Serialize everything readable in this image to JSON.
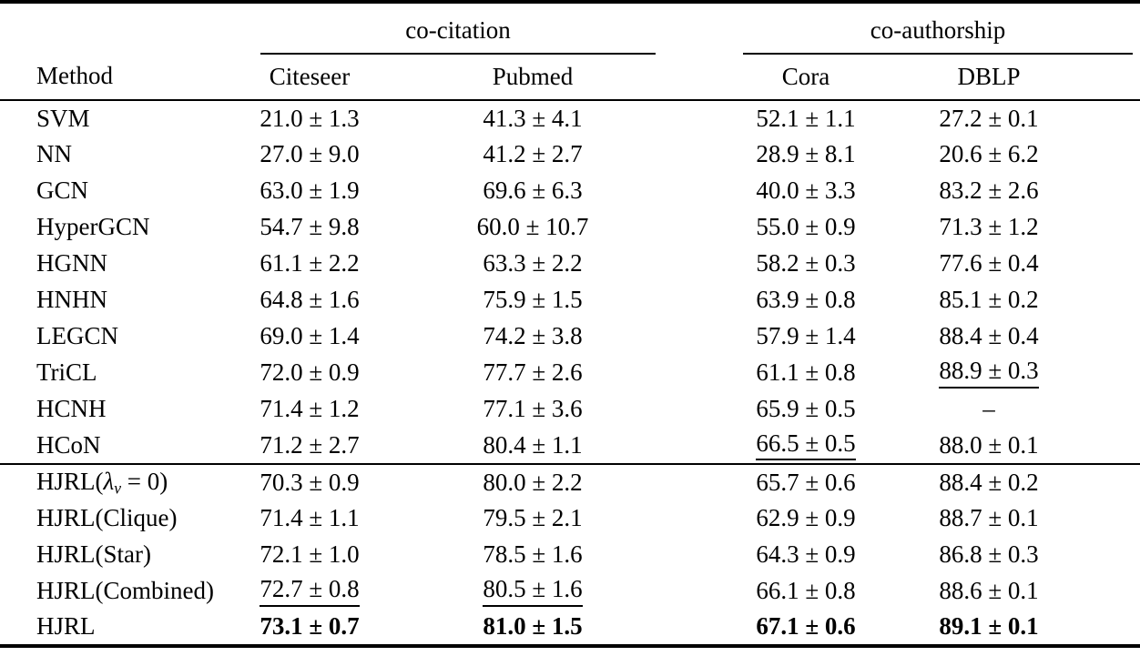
{
  "page": {
    "background_color": "#ffffff",
    "text_color": "#000000",
    "rule_color": "#000000"
  },
  "table": {
    "method_header": "Method",
    "groups": [
      {
        "label": "co-citation",
        "columns": [
          "Citeseer",
          "Pubmed"
        ]
      },
      {
        "label": "co-authorship",
        "columns": [
          "Cora",
          "DBLP"
        ]
      }
    ],
    "sections": [
      {
        "name": "baselines",
        "rows": [
          {
            "method": "SVM",
            "cells": [
              {
                "text": "21.0 ± 1.3"
              },
              {
                "text": "41.3 ± 4.1"
              },
              {
                "text": "52.1 ± 1.1"
              },
              {
                "text": "27.2 ± 0.1"
              }
            ]
          },
          {
            "method": "NN",
            "cells": [
              {
                "text": "27.0 ± 9.0"
              },
              {
                "text": "41.2 ± 2.7"
              },
              {
                "text": "28.9 ± 8.1"
              },
              {
                "text": "20.6 ± 6.2"
              }
            ]
          },
          {
            "method": "GCN",
            "cells": [
              {
                "text": "63.0 ± 1.9"
              },
              {
                "text": "69.6 ± 6.3"
              },
              {
                "text": "40.0 ± 3.3"
              },
              {
                "text": "83.2 ± 2.6"
              }
            ]
          },
          {
            "method": "HyperGCN",
            "cells": [
              {
                "text": "54.7 ± 9.8"
              },
              {
                "text": "60.0 ± 10.7"
              },
              {
                "text": "55.0 ± 0.9"
              },
              {
                "text": "71.3 ± 1.2"
              }
            ]
          },
          {
            "method": "HGNN",
            "cells": [
              {
                "text": "61.1 ± 2.2"
              },
              {
                "text": "63.3 ± 2.2"
              },
              {
                "text": "58.2 ± 0.3"
              },
              {
                "text": "77.6 ± 0.4"
              }
            ]
          },
          {
            "method": "HNHN",
            "cells": [
              {
                "text": "64.8 ± 1.6"
              },
              {
                "text": "75.9 ± 1.5"
              },
              {
                "text": "63.9 ± 0.8"
              },
              {
                "text": "85.1 ± 0.2"
              }
            ]
          },
          {
            "method": "LEGCN",
            "cells": [
              {
                "text": "69.0 ± 1.4"
              },
              {
                "text": "74.2 ± 3.8"
              },
              {
                "text": "57.9 ± 1.4"
              },
              {
                "text": "88.4 ± 0.4"
              }
            ]
          },
          {
            "method": "TriCL",
            "cells": [
              {
                "text": "72.0 ± 0.9"
              },
              {
                "text": "77.7 ± 2.6"
              },
              {
                "text": "61.1 ± 0.8"
              },
              {
                "text": "88.9 ± 0.3",
                "underline": true
              }
            ]
          },
          {
            "method": "HCNH",
            "cells": [
              {
                "text": "71.4 ± 1.2"
              },
              {
                "text": "77.1 ± 3.6"
              },
              {
                "text": "65.9 ± 0.5"
              },
              {
                "text": "–"
              }
            ]
          },
          {
            "method": "HCoN",
            "cells": [
              {
                "text": "71.2 ± 2.7"
              },
              {
                "text": "80.4 ± 1.1"
              },
              {
                "text": "66.5 ± 0.5",
                "underline": true
              },
              {
                "text": "88.0 ± 0.1"
              }
            ]
          }
        ]
      },
      {
        "name": "hjrl-variants",
        "rows": [
          {
            "method": "HJRL(λv = 0)",
            "method_parts": [
              {
                "text": "HJRL("
              },
              {
                "text": "λ",
                "italic": true
              },
              {
                "text": "v",
                "sub": true,
                "italic": true
              },
              {
                "text": " = 0)"
              }
            ],
            "cells": [
              {
                "text": "70.3 ± 0.9"
              },
              {
                "text": "80.0 ± 2.2"
              },
              {
                "text": "65.7 ± 0.6"
              },
              {
                "text": "88.4 ± 0.2"
              }
            ]
          },
          {
            "method": "HJRL(Clique)",
            "cells": [
              {
                "text": "71.4 ± 1.1"
              },
              {
                "text": "79.5 ± 2.1"
              },
              {
                "text": "62.9 ± 0.9"
              },
              {
                "text": "88.7 ± 0.1"
              }
            ]
          },
          {
            "method": "HJRL(Star)",
            "cells": [
              {
                "text": "72.1 ± 1.0"
              },
              {
                "text": "78.5 ± 1.6"
              },
              {
                "text": "64.3 ± 0.9"
              },
              {
                "text": "86.8 ± 0.3"
              }
            ]
          },
          {
            "method": "HJRL(Combined)",
            "cells": [
              {
                "text": "72.7 ± 0.8",
                "underline": true
              },
              {
                "text": "80.5 ± 1.6",
                "underline": true
              },
              {
                "text": "66.1 ± 0.8"
              },
              {
                "text": "88.6 ± 0.1"
              }
            ]
          },
          {
            "method": "HJRL",
            "cells": [
              {
                "text": "73.1 ± 0.7",
                "bold": true
              },
              {
                "text": "81.0 ± 1.5",
                "bold": true
              },
              {
                "text": "67.1 ± 0.6",
                "bold": true
              },
              {
                "text": "89.1 ± 0.1",
                "bold": true
              }
            ]
          }
        ]
      }
    ]
  }
}
